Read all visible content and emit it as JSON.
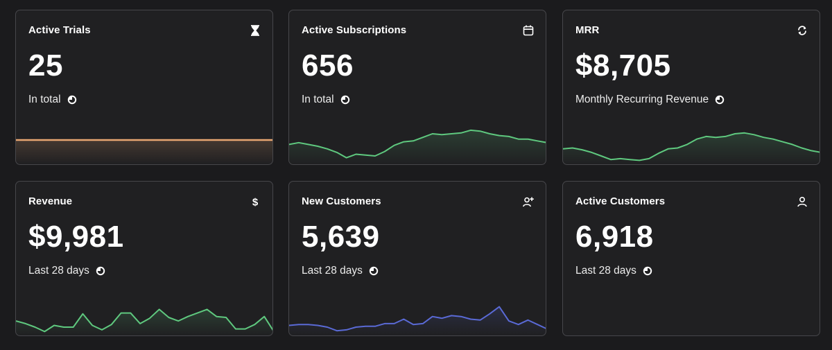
{
  "cards": [
    {
      "title": "Active Trials",
      "value": "25",
      "subtitle": "In total",
      "icon": "hourglass-icon"
    },
    {
      "title": "Active Subscriptions",
      "value": "656",
      "subtitle": "In total",
      "icon": "calendar-icon"
    },
    {
      "title": "MRR",
      "value": "$8,705",
      "subtitle": "Monthly Recurring Revenue",
      "icon": "refresh-icon"
    },
    {
      "title": "Revenue",
      "value": "$9,981",
      "subtitle": "Last 28 days",
      "icon": "dollar-icon"
    },
    {
      "title": "New Customers",
      "value": "5,639",
      "subtitle": "Last 28 days",
      "icon": "user-plus-icon"
    },
    {
      "title": "Active Customers",
      "value": "6,918",
      "subtitle": "Last 28 days",
      "icon": "user-icon"
    }
  ],
  "colors": {
    "trials_line": "#e8a772",
    "green_line": "#5fc97f",
    "blue_line": "#5a6ad6"
  },
  "chart_data": [
    {
      "type": "line",
      "name": "Active Trials trend",
      "values": [
        25,
        25,
        25,
        25,
        25,
        25,
        25,
        25,
        25,
        25,
        25,
        25,
        25,
        25,
        25,
        25,
        25,
        25,
        25,
        25,
        25,
        25,
        25,
        25,
        25,
        25,
        25,
        25
      ],
      "ylim": [
        0,
        50
      ]
    },
    {
      "type": "area",
      "name": "Active Subscriptions trend",
      "values": [
        40,
        44,
        40,
        36,
        30,
        22,
        10,
        18,
        16,
        14,
        24,
        38,
        46,
        48,
        56,
        64,
        62,
        64,
        66,
        72,
        70,
        64,
        60,
        58,
        52,
        52,
        48,
        44
      ],
      "ylim": [
        0,
        100
      ]
    },
    {
      "type": "area",
      "name": "MRR trend",
      "values": [
        30,
        32,
        28,
        22,
        14,
        6,
        8,
        6,
        4,
        8,
        20,
        30,
        32,
        40,
        52,
        58,
        56,
        58,
        64,
        66,
        62,
        56,
        52,
        46,
        40,
        32,
        26,
        22
      ],
      "ylim": [
        0,
        100
      ]
    },
    {
      "type": "area",
      "name": "Revenue trend",
      "values": [
        28,
        22,
        14,
        4,
        18,
        14,
        14,
        44,
        18,
        8,
        20,
        46,
        46,
        22,
        34,
        54,
        36,
        28,
        38,
        46,
        54,
        38,
        36,
        10,
        10,
        20,
        38,
        4
      ],
      "ylim": [
        0,
        100
      ]
    },
    {
      "type": "area",
      "name": "New Customers trend",
      "values": [
        18,
        20,
        20,
        18,
        14,
        6,
        8,
        14,
        16,
        16,
        22,
        22,
        32,
        20,
        22,
        38,
        34,
        40,
        38,
        32,
        30,
        44,
        60,
        28,
        20,
        30,
        20,
        10
      ],
      "ylim": [
        0,
        100
      ]
    }
  ]
}
